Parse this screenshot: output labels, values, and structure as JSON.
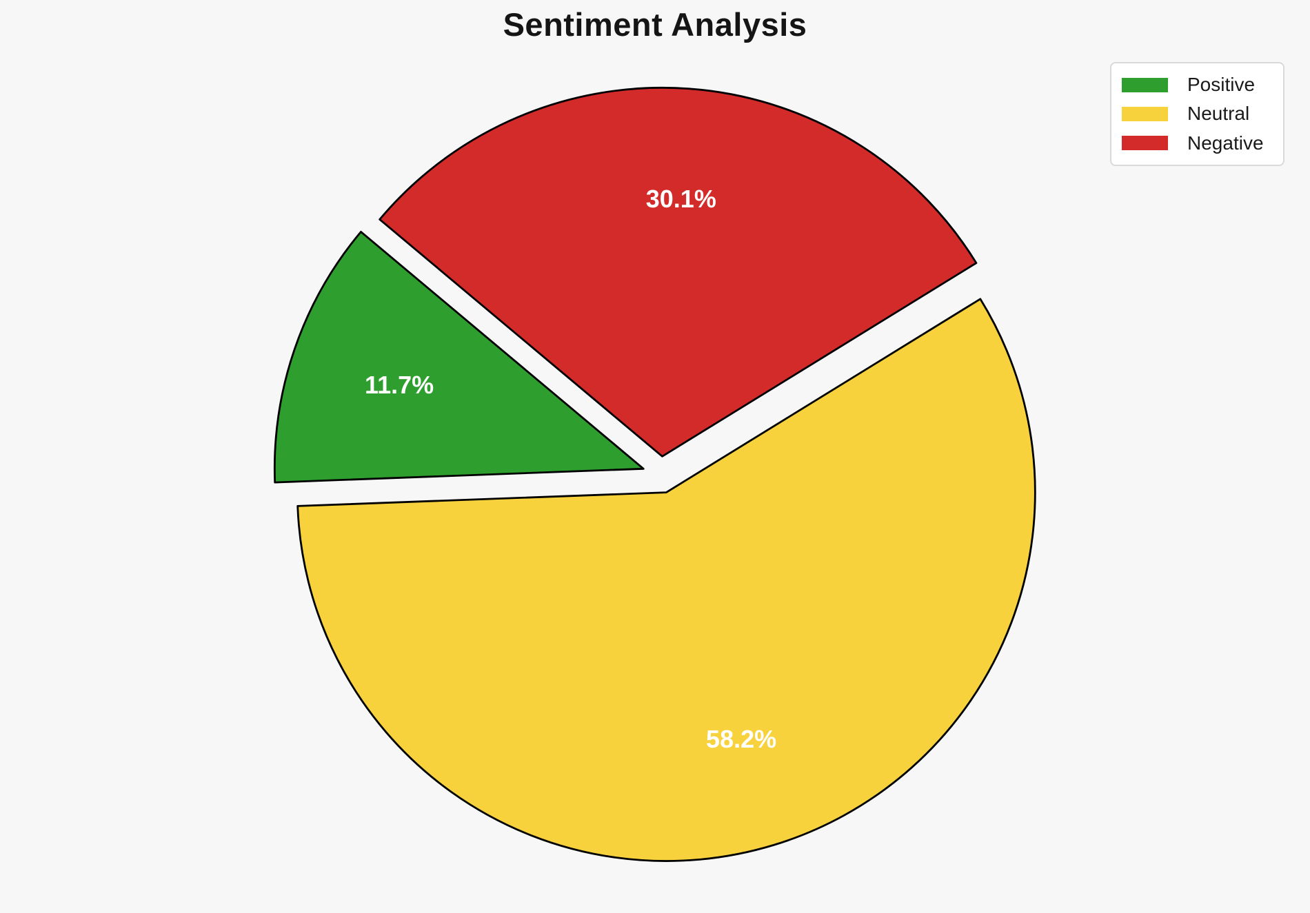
{
  "chart_data": {
    "type": "pie",
    "title": "Sentiment Analysis",
    "labels": [
      "Positive",
      "Neutral",
      "Negative"
    ],
    "values": [
      11.7,
      58.2,
      30.1
    ],
    "pct_labels": [
      "11.7%",
      "58.2%",
      "30.1%"
    ],
    "colors": [
      "#2e9e2e",
      "#f8d23c",
      "#d32a2a"
    ],
    "edge_color": "#000000",
    "pct_label_color": "#ffffff",
    "startangle": 140,
    "counterclock": true,
    "explode": [
      0.05,
      0.05,
      0.05
    ],
    "pctdistance": 0.7,
    "background": "#f7f7f7",
    "legend": {
      "position": "upper right",
      "items": [
        {
          "label": "Positive",
          "color": "#2e9e2e"
        },
        {
          "label": "Neutral",
          "color": "#f8d23c"
        },
        {
          "label": "Negative",
          "color": "#d32a2a"
        }
      ]
    }
  }
}
